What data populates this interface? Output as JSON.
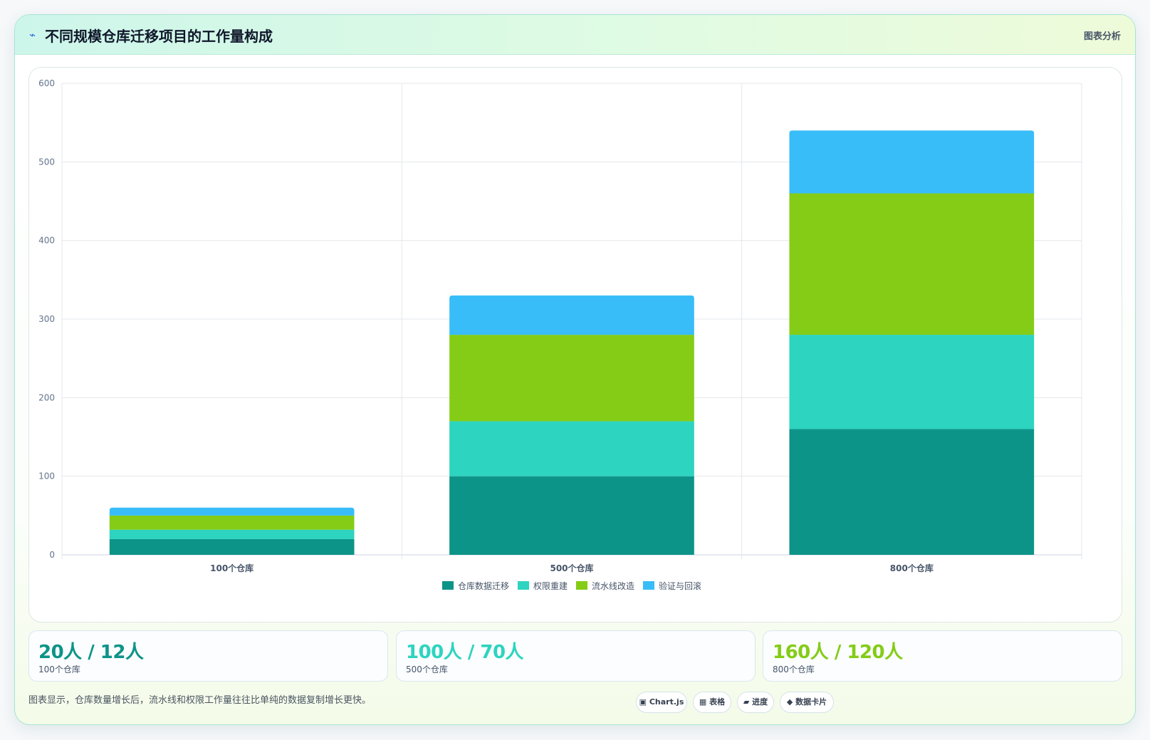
{
  "header": {
    "icon": "trend-icon",
    "title": "不同规模仓库迁移项目的工作量构成",
    "tag": "图表分析"
  },
  "chart_data": {
    "type": "bar",
    "stacked": true,
    "title": "",
    "xlabel": "",
    "ylabel": "",
    "categories": [
      "100个仓库",
      "500个仓库",
      "800个仓库"
    ],
    "series": [
      {
        "name": "仓库数据迁移",
        "color": "#0d9488",
        "values": [
          20,
          100,
          160
        ]
      },
      {
        "name": "权限重建",
        "color": "#2dd4bf",
        "values": [
          12,
          70,
          120
        ]
      },
      {
        "name": "流水线改造",
        "color": "#84cc16",
        "values": [
          18,
          110,
          180
        ]
      },
      {
        "name": "验证与回滚",
        "color": "#38bdf8",
        "values": [
          10,
          50,
          80
        ]
      }
    ],
    "ylim": [
      0,
      600
    ],
    "yticks": [
      0,
      100,
      200,
      300,
      400,
      500,
      600
    ],
    "grid": true,
    "legend": "bottom"
  },
  "stats": [
    {
      "value": "20人 / 12人",
      "label": "100个仓库",
      "color": "#0d9488"
    },
    {
      "value": "100人 / 70人",
      "label": "500个仓库",
      "color": "#2dd4bf"
    },
    {
      "value": "160人 / 120人",
      "label": "800个仓库",
      "color": "#84cc16"
    }
  ],
  "footnote": "图表显示，仓库数量增长后，流水线和权限工作量往往比单纯的数据复制增长更快。",
  "chips": [
    {
      "icon": "▣",
      "label": "Chart.js"
    },
    {
      "icon": "▦",
      "label": "表格"
    },
    {
      "icon": "▰",
      "label": "进度"
    },
    {
      "icon": "◆",
      "label": "数据卡片"
    }
  ]
}
